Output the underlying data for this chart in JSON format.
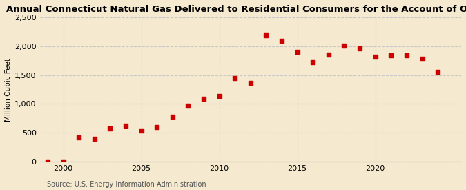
{
  "title": "Annual Connecticut Natural Gas Delivered to Residential Consumers for the Account of Others",
  "ylabel": "Million Cubic Feet",
  "source": "Source: U.S. Energy Information Administration",
  "background_color": "#f5e9cf",
  "plot_background_color": "#f5e9cf",
  "marker_color": "#cc0000",
  "years": [
    1999,
    2000,
    2001,
    2002,
    2003,
    2004,
    2005,
    2006,
    2007,
    2008,
    2009,
    2010,
    2011,
    2012,
    2013,
    2014,
    2015,
    2016,
    2017,
    2018,
    2019,
    2020,
    2021,
    2022,
    2023,
    2024
  ],
  "values": [
    2,
    5,
    420,
    400,
    580,
    620,
    540,
    600,
    780,
    970,
    1090,
    1140,
    1450,
    1360,
    2190,
    2090,
    1900,
    1730,
    1860,
    2010,
    1960,
    1820,
    1840,
    1840,
    1780,
    1560
  ],
  "xlim": [
    1998.5,
    2025.5
  ],
  "ylim": [
    0,
    2500
  ],
  "yticks": [
    0,
    500,
    1000,
    1500,
    2000,
    2500
  ],
  "ytick_labels": [
    "0",
    "500",
    "1,000",
    "1,500",
    "2,000",
    "2,500"
  ],
  "xticks": [
    2000,
    2005,
    2010,
    2015,
    2020
  ],
  "grid_color": "#c8c8c8",
  "title_fontsize": 9.5,
  "label_fontsize": 7.5,
  "tick_fontsize": 8,
  "source_fontsize": 7
}
